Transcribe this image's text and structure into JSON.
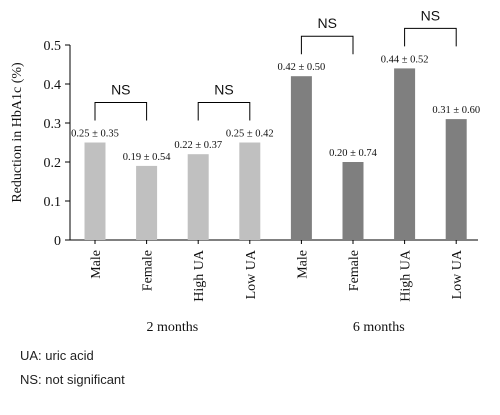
{
  "chart_data": {
    "type": "bar",
    "title": "",
    "xlabel": "",
    "ylabel": "Reduction in HbA1c (%)",
    "ylim": [
      0,
      0.5
    ],
    "yticks": [
      "0",
      "0.1",
      "0.2",
      "0.3",
      "0.4",
      "0.5"
    ],
    "grid": false,
    "legend": "none",
    "groups": [
      {
        "label": "2 months",
        "color": "#c0c0c0"
      },
      {
        "label": "6 months",
        "color": "#7f7f7f"
      }
    ],
    "categories": [
      "Male",
      "Female",
      "High UA",
      "Low UA",
      "Male",
      "Female",
      "High UA",
      "Low UA"
    ],
    "values": [
      0.25,
      0.19,
      0.22,
      0.25,
      0.42,
      0.2,
      0.44,
      0.31
    ],
    "group_index": [
      0,
      0,
      0,
      0,
      1,
      1,
      1,
      1
    ],
    "data_labels": [
      "0.25 ± 0.35",
      "0.19 ± 0.54",
      "0.22 ± 0.37",
      "0.25 ± 0.42",
      "0.42 ± 0.50",
      "0.20 ± 0.74",
      "0.44 ± 0.52",
      "0.31 ± 0.60"
    ],
    "annotations": [
      {
        "text": "NS",
        "from": 0,
        "to": 1
      },
      {
        "text": "NS",
        "from": 2,
        "to": 3
      },
      {
        "text": "NS",
        "from": 4,
        "to": 5
      },
      {
        "text": "NS",
        "from": 6,
        "to": 7
      }
    ]
  },
  "footnotes": {
    "ua": "UA: uric acid",
    "ns": "NS: not significant"
  }
}
